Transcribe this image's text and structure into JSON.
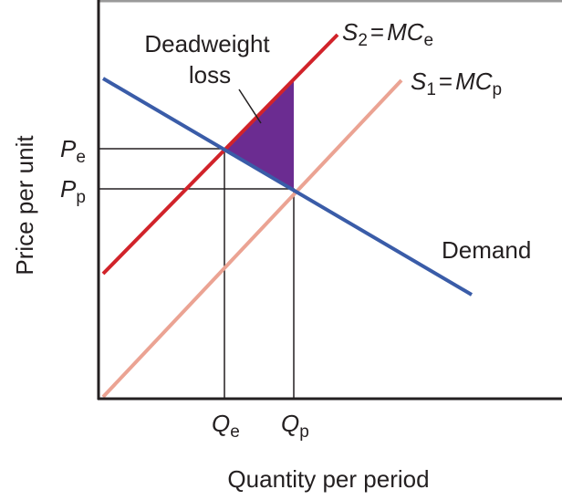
{
  "title": null,
  "axes": {
    "y_label": "Price per unit",
    "x_label": "Quantity per period"
  },
  "annotation": {
    "line1": "Deadweight",
    "line2": "loss"
  },
  "curves": {
    "supply_2": {
      "left": "S",
      "left_sub": "2",
      "eq": "=",
      "right": "MC",
      "right_sub": "e"
    },
    "supply_1": {
      "left": "S",
      "left_sub": "1",
      "eq": "=",
      "right": "MC",
      "right_sub": "p"
    },
    "demand": "Demand"
  },
  "price_labels": [
    {
      "main": "P",
      "sub": "e"
    },
    {
      "main": "P",
      "sub": "p"
    }
  ],
  "quantity_labels": [
    {
      "main": "Q",
      "sub": "e"
    },
    {
      "main": "Q",
      "sub": "p"
    }
  ]
}
